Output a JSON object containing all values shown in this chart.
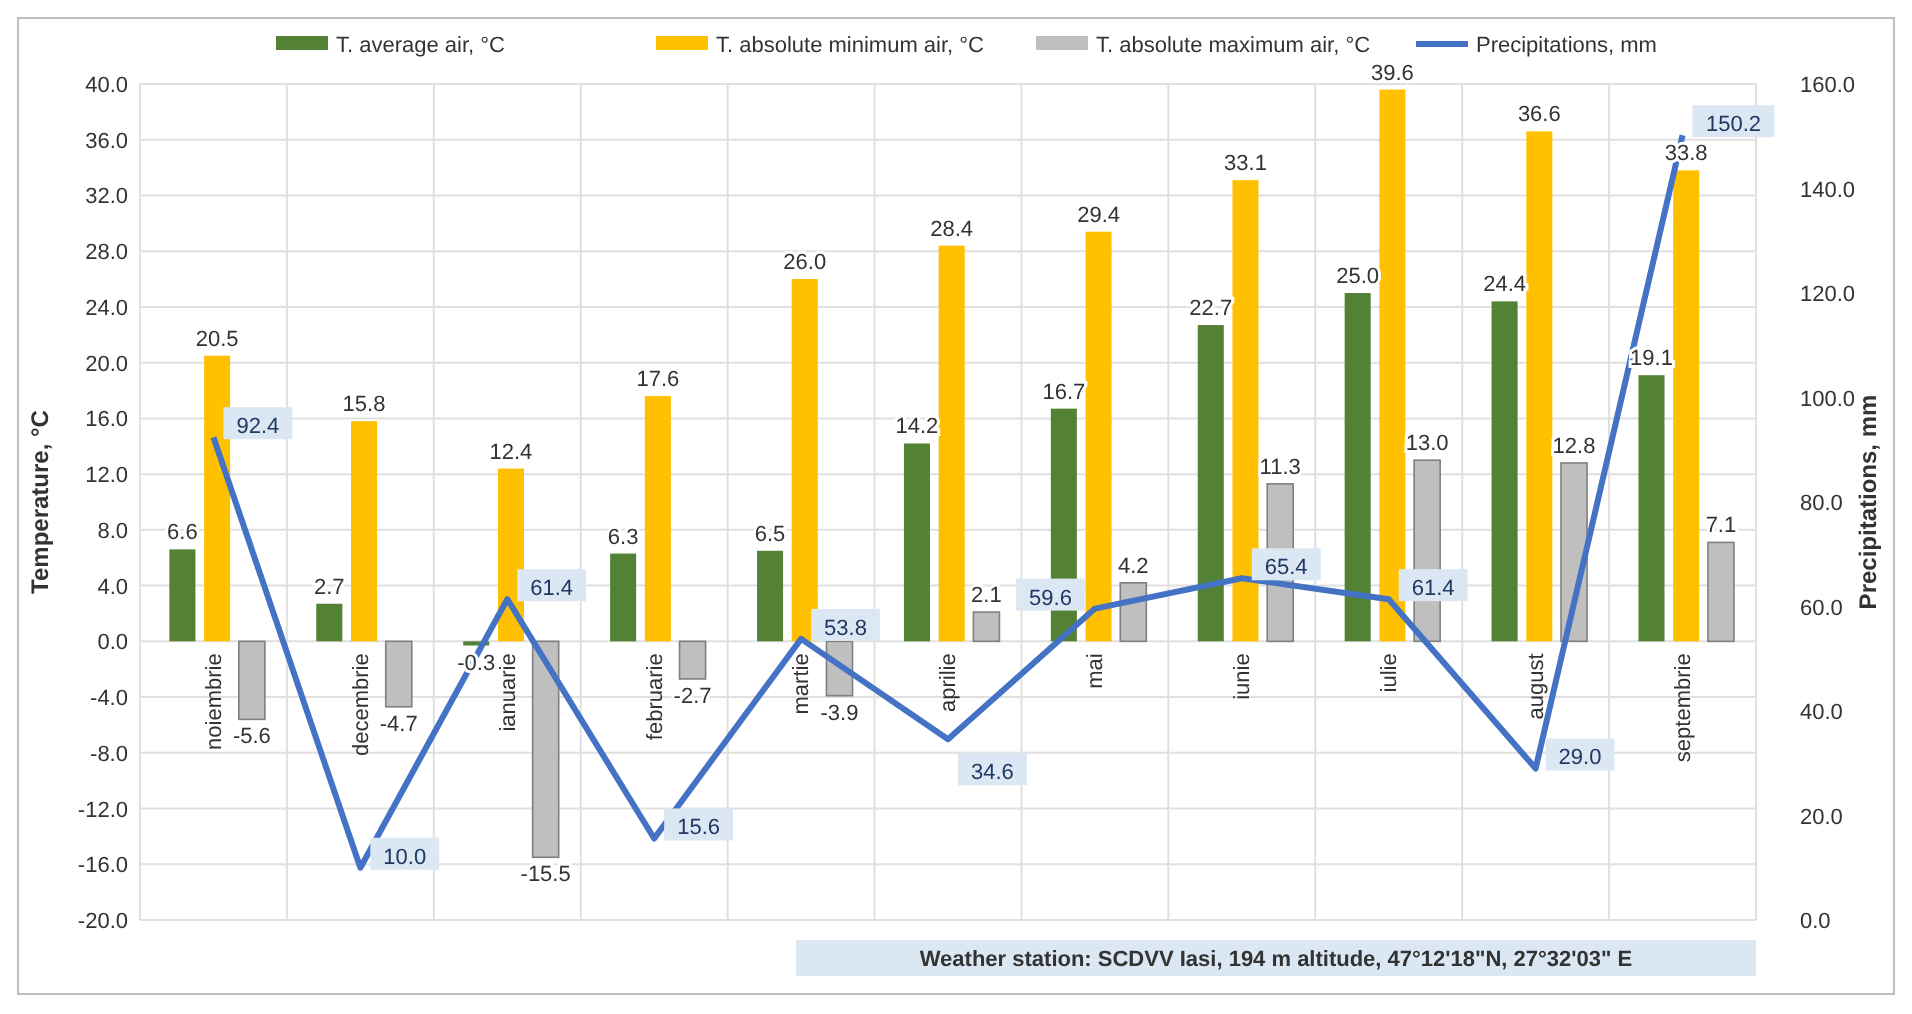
{
  "chart_data": {
    "type": "bar",
    "categories": [
      "noiembrie",
      "decembrie",
      "ianuarie",
      "februarie",
      "martie",
      "aprilie",
      "mai",
      "iunie",
      "iulie",
      "august",
      "septembrie"
    ],
    "series": [
      {
        "name": "T. average air, °C",
        "color": "#548235",
        "values": [
          6.6,
          2.7,
          -0.3,
          6.3,
          6.5,
          14.2,
          16.7,
          22.7,
          25.0,
          24.4,
          19.1
        ],
        "value_labels": [
          "6.6",
          "2.7",
          "-0.3",
          "6.3",
          "6.5",
          "14.2",
          "16.7",
          "22.7",
          "25.0",
          "24.4",
          "19.1"
        ]
      },
      {
        "name": "T. absolute minimum air, °C",
        "color": "#ffc000",
        "values": [
          20.5,
          15.8,
          12.4,
          17.6,
          26.0,
          28.4,
          29.4,
          33.1,
          39.6,
          36.6,
          33.8
        ],
        "value_labels": [
          "20.5",
          "15.8",
          "12.4",
          "17.6",
          "26.0",
          "28.4",
          "29.4",
          "33.1",
          "39.6",
          "36.6",
          "33.8"
        ]
      },
      {
        "name": "T. absolute maximum air, °C",
        "color": "#bfbfbf",
        "values": [
          -5.6,
          -4.7,
          -15.5,
          -2.7,
          -3.9,
          2.1,
          4.2,
          11.3,
          13.0,
          12.8,
          7.1
        ],
        "value_labels": [
          "-5.6",
          "-4.7",
          "-15.5",
          "-2.7",
          "-3.9",
          "2.1",
          "4.2",
          "11.3",
          "13.0",
          "12.8",
          "7.1"
        ]
      },
      {
        "name": "Precipitations, mm",
        "type": "line",
        "axis": "y2",
        "color": "#4472c4",
        "values": [
          92.4,
          10.0,
          61.4,
          15.6,
          53.8,
          34.6,
          59.6,
          65.4,
          61.4,
          29.0,
          150.2
        ],
        "value_labels": [
          "92.4",
          "10.0",
          "61.4",
          "15.6",
          "53.8",
          "34.6",
          "59.6",
          "65.4",
          "61.4",
          "29.0",
          "150.2"
        ]
      }
    ],
    "ylim": [
      -20,
      40
    ],
    "yticks": [
      {
        "value": -20,
        "label": "-20.0"
      },
      {
        "value": -16,
        "label": "-16.0"
      },
      {
        "value": -12,
        "label": "-12.0"
      },
      {
        "value": -8,
        "label": "-8.0"
      },
      {
        "value": -4,
        "label": "-4.0"
      },
      {
        "value": 0,
        "label": "0.0"
      },
      {
        "value": 4,
        "label": "4.0"
      },
      {
        "value": 8,
        "label": "8.0"
      },
      {
        "value": 12,
        "label": "12.0"
      },
      {
        "value": 16,
        "label": "16.0"
      },
      {
        "value": 20,
        "label": "20.0"
      },
      {
        "value": 24,
        "label": "24.0"
      },
      {
        "value": 28,
        "label": "28.0"
      },
      {
        "value": 32,
        "label": "32.0"
      },
      {
        "value": 36,
        "label": "36.0"
      },
      {
        "value": 40,
        "label": "40.0"
      }
    ],
    "y2lim": [
      0,
      160
    ],
    "y2ticks": [
      {
        "value": 0,
        "label": "0.0"
      },
      {
        "value": 20,
        "label": "20.0"
      },
      {
        "value": 40,
        "label": "40.0"
      },
      {
        "value": 60,
        "label": "60.0"
      },
      {
        "value": 80,
        "label": "80.0"
      },
      {
        "value": 100,
        "label": "100.0"
      },
      {
        "value": 120,
        "label": "120.0"
      },
      {
        "value": 140,
        "label": "140.0"
      },
      {
        "value": 160,
        "label": "160.0"
      }
    ],
    "ylabel": "Temperature, °C",
    "y2label": "Precipitations, mm",
    "grid": true,
    "legend": "top",
    "marker": "none",
    "line_style": "solid",
    "annotations": [
      "Weather station: SCDVV Iasi, 194 m altitude, 47°12'18\"N, 27°32'03\" E"
    ]
  }
}
